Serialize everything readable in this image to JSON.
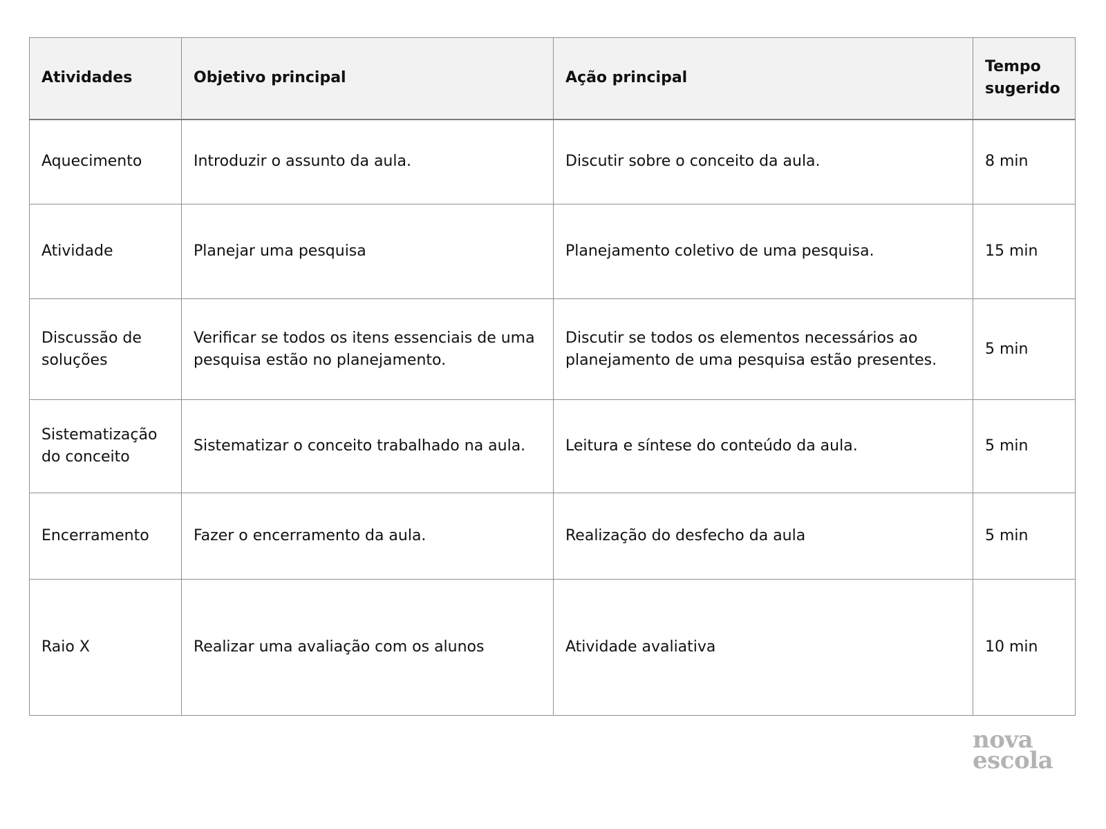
{
  "table": {
    "headers": [
      "Atividades",
      "Objetivo principal",
      "Ação principal",
      "Tempo sugerido"
    ],
    "rows": [
      {
        "atividade": "Aquecimento",
        "objetivo": "Introduzir o assunto da aula.",
        "acao": "Discutir sobre o conceito da aula.",
        "tempo": "8 min"
      },
      {
        "atividade": "Atividade",
        "objetivo": "Planejar uma pesquisa",
        "acao": "Planejamento coletivo de uma pesquisa.",
        "tempo": "15 min"
      },
      {
        "atividade": "Discussão de soluções",
        "objetivo": "Verificar se todos os itens essenciais de uma pesquisa estão no planejamento.",
        "acao": "Discutir se todos os elementos necessários ao planejamento de uma pesquisa estão presentes.",
        "tempo": "5 min"
      },
      {
        "atividade": "Sistematização do conceito",
        "objetivo": "Sistematizar o conceito trabalhado na aula.",
        "acao": "Leitura e síntese do conteúdo da aula.",
        "tempo": "5 min"
      },
      {
        "atividade": "Encerramento",
        "objetivo": "Fazer o encerramento da aula.",
        "acao": "Realização do desfecho da aula",
        "tempo": "5 min"
      },
      {
        "atividade": "Raio X",
        "objetivo": "Realizar uma avaliação com os alunos",
        "acao": "Atividade avaliativa",
        "tempo": "10 min"
      }
    ]
  },
  "logo": {
    "line1": "nova",
    "line2": "escola"
  },
  "colors": {
    "header_bg": "#f2f2f2",
    "border": "#8f8f8f",
    "header_bottom_border": "#7a7a7a",
    "text": "#111111",
    "logo_gray": "#b3b3b3"
  }
}
